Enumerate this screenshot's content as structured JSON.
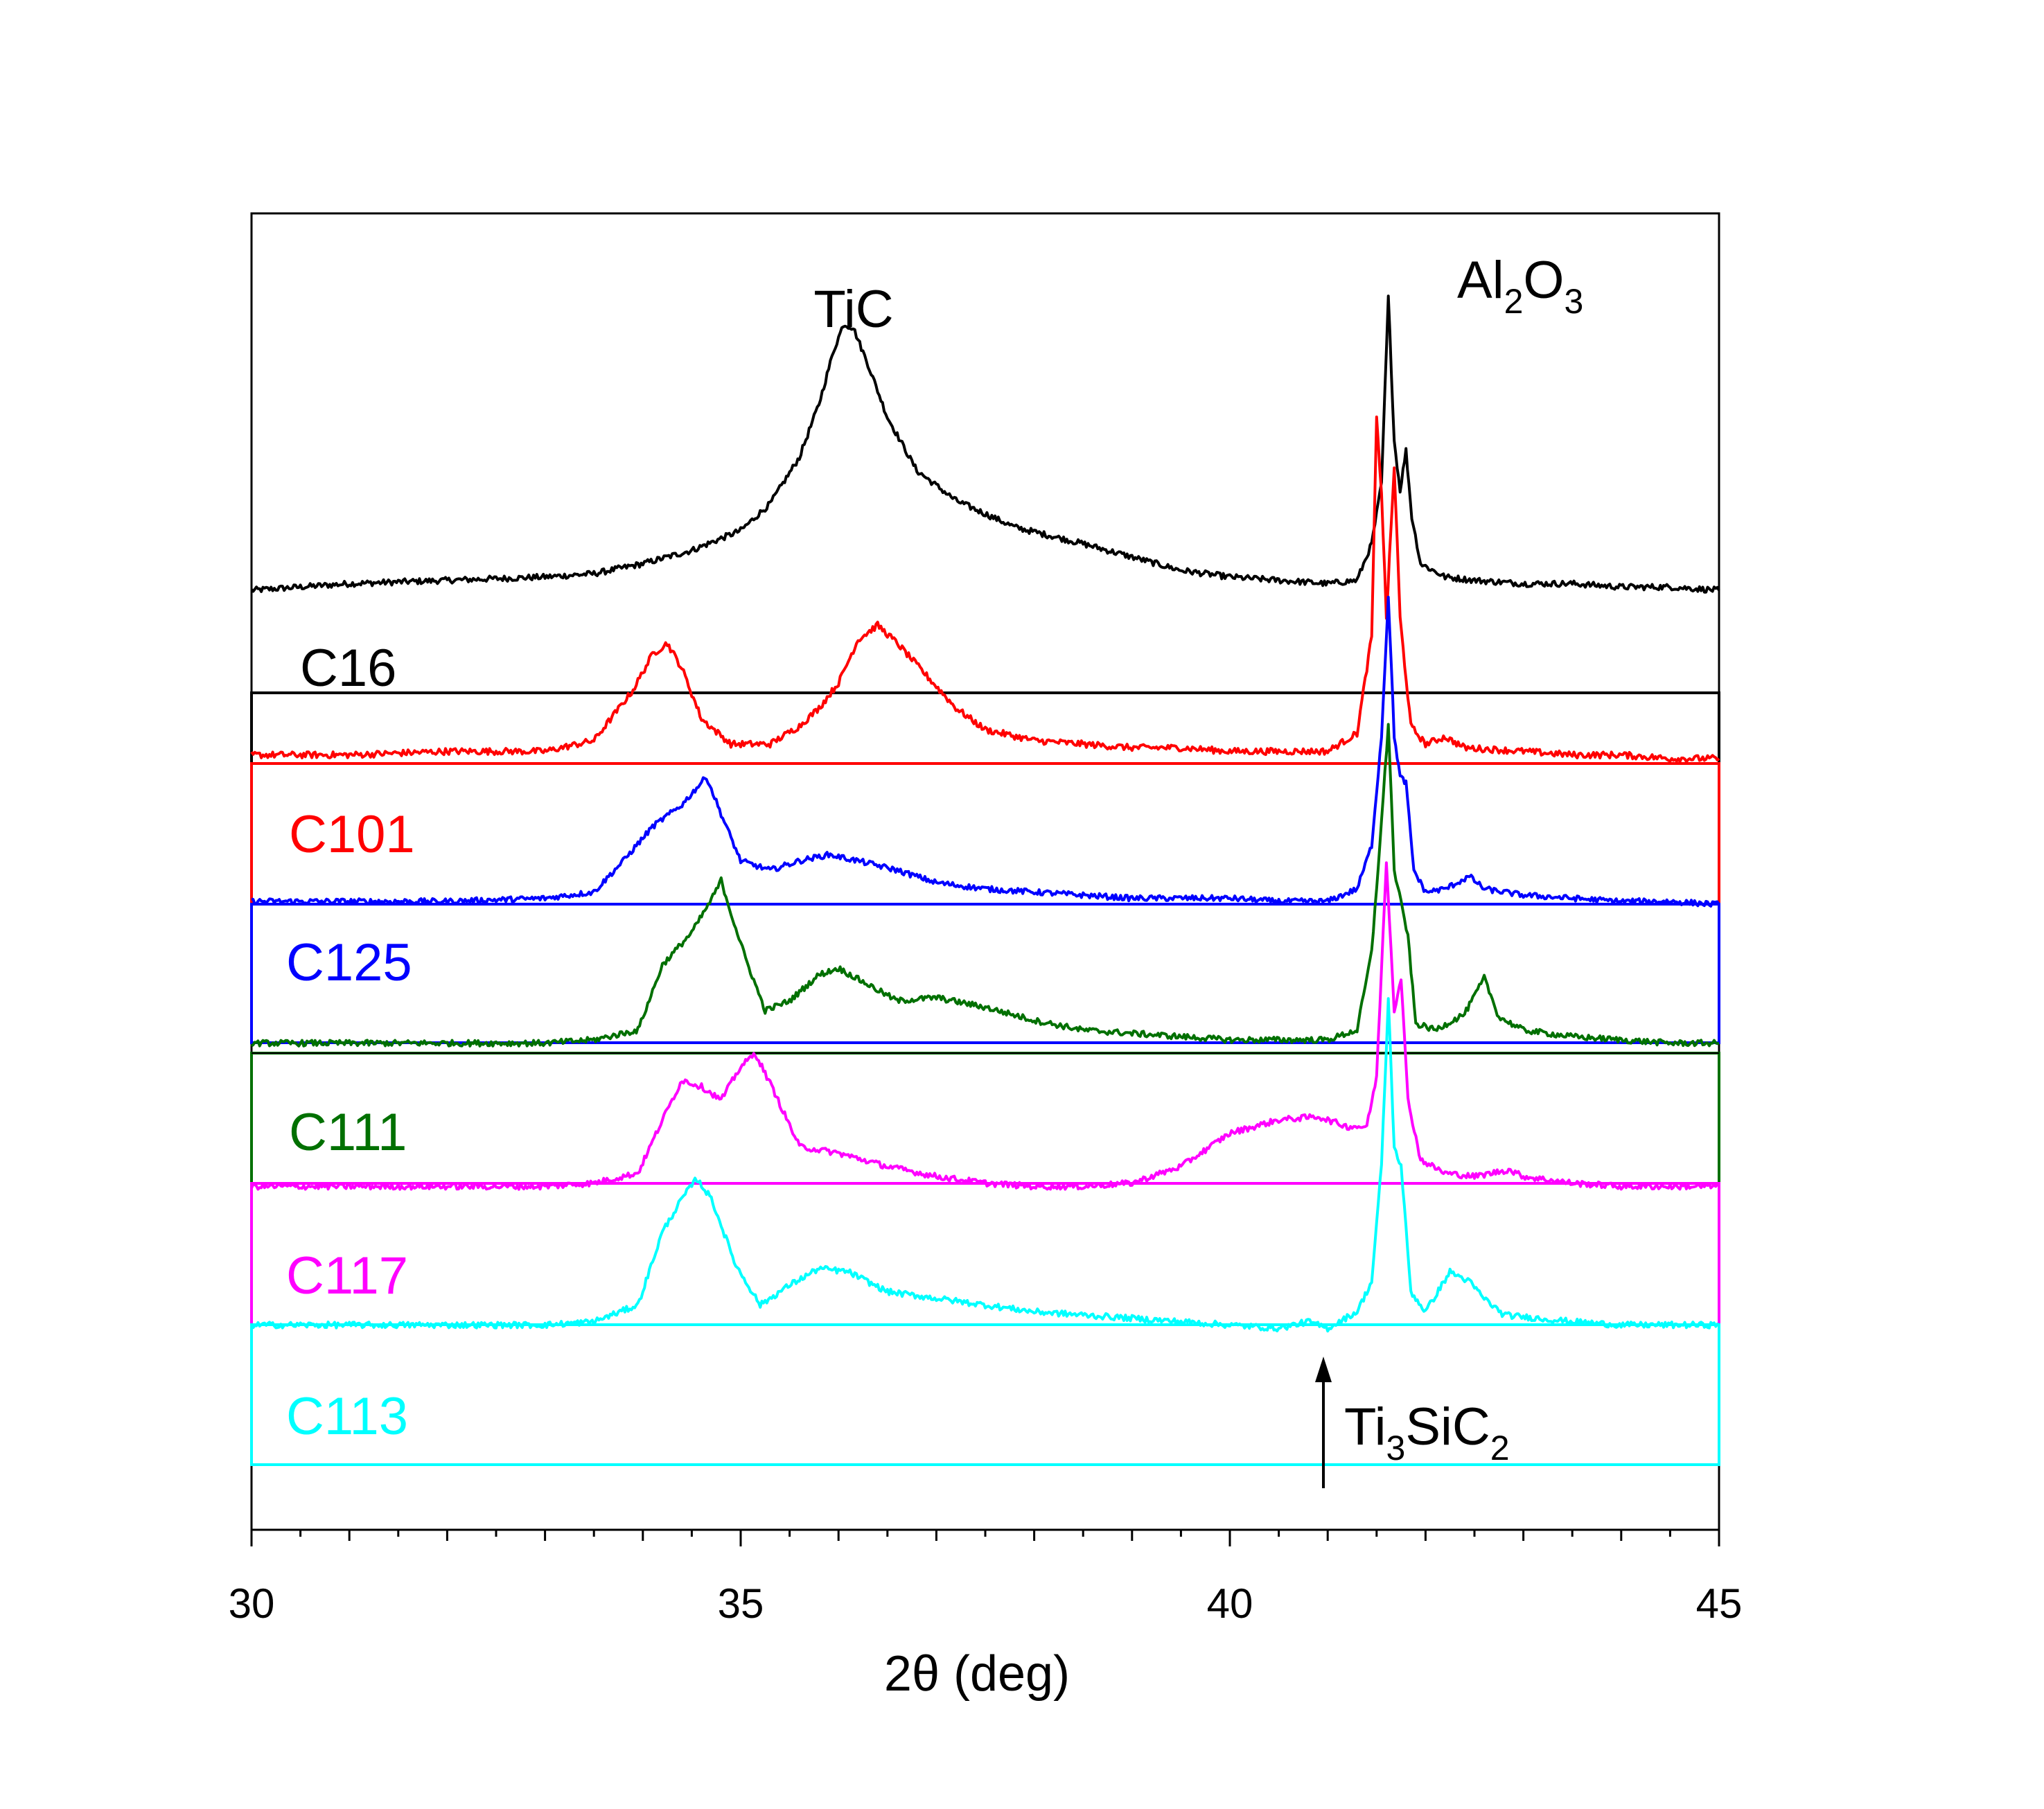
{
  "chart_data": {
    "type": "line",
    "title": "",
    "xlabel": "2θ (deg)",
    "ylabel": "",
    "xlim": [
      30,
      45
    ],
    "xticks": [
      30,
      35,
      40,
      45
    ],
    "xticklabels": [
      "30",
      "35",
      "40",
      "45"
    ],
    "grid": false,
    "layout": "stacked offset traces; each sample label sits inside a rectangular box outlined in the series colour",
    "annotations": [
      {
        "id": "tic",
        "text": "TiC",
        "x": 36.1
      },
      {
        "id": "al2o3",
        "parts": [
          "Al",
          "2",
          "O",
          "3"
        ],
        "x": 43.0
      },
      {
        "id": "ti3sic2",
        "parts": [
          "Ti",
          "3",
          "SiC",
          "2"
        ],
        "x": 40.95,
        "arrow": true
      }
    ],
    "series": [
      {
        "name": "C16",
        "color": "#000000",
        "baseline": 0.0,
        "points": [
          [
            30,
            0.1
          ],
          [
            31,
            0.12
          ],
          [
            32,
            0.13
          ],
          [
            33,
            0.14
          ],
          [
            33.5,
            0.15
          ],
          [
            34,
            0.18
          ],
          [
            34.5,
            0.22
          ],
          [
            35,
            0.28
          ],
          [
            35.3,
            0.36
          ],
          [
            35.6,
            0.5
          ],
          [
            35.8,
            0.66
          ],
          [
            35.95,
            0.82
          ],
          [
            36.05,
            0.9
          ],
          [
            36.15,
            0.89
          ],
          [
            36.3,
            0.78
          ],
          [
            36.5,
            0.62
          ],
          [
            36.8,
            0.46
          ],
          [
            37.2,
            0.37
          ],
          [
            37.8,
            0.29
          ],
          [
            38.5,
            0.24
          ],
          [
            39,
            0.2
          ],
          [
            39.5,
            0.16
          ],
          [
            40,
            0.14
          ],
          [
            40.5,
            0.13
          ],
          [
            41,
            0.12
          ],
          [
            41.3,
            0.13
          ],
          [
            41.45,
            0.24
          ],
          [
            41.55,
            0.42
          ],
          [
            41.62,
            0.98
          ],
          [
            41.68,
            0.55
          ],
          [
            41.74,
            0.4
          ],
          [
            41.8,
            0.52
          ],
          [
            41.86,
            0.32
          ],
          [
            41.95,
            0.18
          ],
          [
            42.2,
            0.14
          ],
          [
            42.5,
            0.13
          ],
          [
            43,
            0.12
          ],
          [
            43.5,
            0.12
          ],
          [
            44,
            0.11
          ],
          [
            44.5,
            0.11
          ],
          [
            45,
            0.1
          ]
        ]
      },
      {
        "name": "C101",
        "color": "#ff0000",
        "baseline": 0.0,
        "points": [
          [
            30,
            0.02
          ],
          [
            31,
            0.02
          ],
          [
            32,
            0.03
          ],
          [
            33,
            0.03
          ],
          [
            33.5,
            0.06
          ],
          [
            33.9,
            0.2
          ],
          [
            34.1,
            0.3
          ],
          [
            34.25,
            0.33
          ],
          [
            34.4,
            0.26
          ],
          [
            34.6,
            0.12
          ],
          [
            34.9,
            0.05
          ],
          [
            35.3,
            0.05
          ],
          [
            35.6,
            0.1
          ],
          [
            35.8,
            0.15
          ],
          [
            36.0,
            0.22
          ],
          [
            36.2,
            0.34
          ],
          [
            36.4,
            0.38
          ],
          [
            36.6,
            0.33
          ],
          [
            36.9,
            0.24
          ],
          [
            37.2,
            0.15
          ],
          [
            37.5,
            0.09
          ],
          [
            38,
            0.06
          ],
          [
            38.5,
            0.05
          ],
          [
            39,
            0.04
          ],
          [
            39.5,
            0.04
          ],
          [
            40,
            0.03
          ],
          [
            40.5,
            0.03
          ],
          [
            41,
            0.03
          ],
          [
            41.3,
            0.08
          ],
          [
            41.45,
            0.35
          ],
          [
            41.5,
            0.95
          ],
          [
            41.55,
            0.75
          ],
          [
            41.6,
            0.4
          ],
          [
            41.68,
            0.82
          ],
          [
            41.74,
            0.4
          ],
          [
            41.85,
            0.1
          ],
          [
            42,
            0.05
          ],
          [
            42.2,
            0.07
          ],
          [
            42.4,
            0.04
          ],
          [
            43,
            0.03
          ],
          [
            43.5,
            0.02
          ],
          [
            44,
            0.02
          ],
          [
            44.5,
            0.01
          ],
          [
            45,
            0.01
          ]
        ]
      },
      {
        "name": "C125",
        "color": "#0000ff",
        "baseline": 0.0,
        "points": [
          [
            30,
            0.02
          ],
          [
            31,
            0.02
          ],
          [
            32,
            0.02
          ],
          [
            33,
            0.03
          ],
          [
            33.5,
            0.05
          ],
          [
            33.8,
            0.15
          ],
          [
            34.1,
            0.26
          ],
          [
            34.4,
            0.33
          ],
          [
            34.65,
            0.42
          ],
          [
            34.8,
            0.3
          ],
          [
            35.0,
            0.15
          ],
          [
            35.3,
            0.12
          ],
          [
            35.6,
            0.15
          ],
          [
            35.9,
            0.17
          ],
          [
            36.2,
            0.15
          ],
          [
            36.6,
            0.12
          ],
          [
            37,
            0.08
          ],
          [
            37.5,
            0.06
          ],
          [
            38,
            0.05
          ],
          [
            38.5,
            0.04
          ],
          [
            39,
            0.03
          ],
          [
            39.5,
            0.03
          ],
          [
            40,
            0.03
          ],
          [
            40.5,
            0.02
          ],
          [
            41,
            0.02
          ],
          [
            41.3,
            0.06
          ],
          [
            41.45,
            0.2
          ],
          [
            41.55,
            0.55
          ],
          [
            41.62,
            1.0
          ],
          [
            41.68,
            0.55
          ],
          [
            41.74,
            0.42
          ],
          [
            41.8,
            0.4
          ],
          [
            41.88,
            0.12
          ],
          [
            42,
            0.05
          ],
          [
            42.2,
            0.06
          ],
          [
            42.45,
            0.1
          ],
          [
            42.6,
            0.06
          ],
          [
            43,
            0.04
          ],
          [
            43.5,
            0.03
          ],
          [
            44,
            0.02
          ],
          [
            44.5,
            0.02
          ],
          [
            45,
            0.01
          ]
        ]
      },
      {
        "name": "C111",
        "color": "#007000",
        "baseline": 0.0,
        "points": [
          [
            30,
            0.02
          ],
          [
            31,
            0.02
          ],
          [
            32,
            0.02
          ],
          [
            33,
            0.02
          ],
          [
            33.5,
            0.03
          ],
          [
            33.95,
            0.06
          ],
          [
            34.2,
            0.26
          ],
          [
            34.5,
            0.36
          ],
          [
            34.7,
            0.46
          ],
          [
            34.8,
            0.52
          ],
          [
            34.9,
            0.42
          ],
          [
            35.05,
            0.28
          ],
          [
            35.25,
            0.12
          ],
          [
            35.5,
            0.15
          ],
          [
            35.8,
            0.23
          ],
          [
            36.0,
            0.25
          ],
          [
            36.3,
            0.2
          ],
          [
            36.6,
            0.15
          ],
          [
            37,
            0.16
          ],
          [
            37.5,
            0.13
          ],
          [
            38,
            0.09
          ],
          [
            38.5,
            0.06
          ],
          [
            39,
            0.05
          ],
          [
            39.5,
            0.04
          ],
          [
            40,
            0.03
          ],
          [
            40.5,
            0.03
          ],
          [
            41,
            0.03
          ],
          [
            41.3,
            0.06
          ],
          [
            41.45,
            0.3
          ],
          [
            41.55,
            0.7
          ],
          [
            41.62,
            1.0
          ],
          [
            41.68,
            0.55
          ],
          [
            41.75,
            0.45
          ],
          [
            41.82,
            0.35
          ],
          [
            41.9,
            0.08
          ],
          [
            42.1,
            0.06
          ],
          [
            42.4,
            0.11
          ],
          [
            42.6,
            0.22
          ],
          [
            42.75,
            0.1
          ],
          [
            43,
            0.06
          ],
          [
            43.5,
            0.04
          ],
          [
            44,
            0.03
          ],
          [
            44.5,
            0.02
          ],
          [
            45,
            0.02
          ]
        ]
      },
      {
        "name": "C117",
        "color": "#ff00ff",
        "baseline": 0.0,
        "points": [
          [
            30,
            0.02
          ],
          [
            31,
            0.02
          ],
          [
            32,
            0.02
          ],
          [
            33,
            0.02
          ],
          [
            33.5,
            0.03
          ],
          [
            33.95,
            0.06
          ],
          [
            34.2,
            0.22
          ],
          [
            34.4,
            0.34
          ],
          [
            34.6,
            0.32
          ],
          [
            34.8,
            0.28
          ],
          [
            35.0,
            0.38
          ],
          [
            35.15,
            0.42
          ],
          [
            35.35,
            0.3
          ],
          [
            35.6,
            0.14
          ],
          [
            36,
            0.12
          ],
          [
            36.5,
            0.08
          ],
          [
            37,
            0.05
          ],
          [
            37.5,
            0.03
          ],
          [
            38,
            0.02
          ],
          [
            38.5,
            0.02
          ],
          [
            39,
            0.03
          ],
          [
            39.5,
            0.08
          ],
          [
            40,
            0.18
          ],
          [
            40.5,
            0.22
          ],
          [
            40.9,
            0.23
          ],
          [
            41.2,
            0.2
          ],
          [
            41.4,
            0.2
          ],
          [
            41.5,
            0.35
          ],
          [
            41.6,
            1.0
          ],
          [
            41.68,
            0.55
          ],
          [
            41.75,
            0.65
          ],
          [
            41.82,
            0.28
          ],
          [
            41.95,
            0.1
          ],
          [
            42.2,
            0.06
          ],
          [
            42.5,
            0.05
          ],
          [
            42.85,
            0.07
          ],
          [
            43,
            0.05
          ],
          [
            43.5,
            0.03
          ],
          [
            44,
            0.02
          ],
          [
            44.5,
            0.02
          ],
          [
            45,
            0.02
          ]
        ]
      },
      {
        "name": "C113",
        "color": "#00ffff",
        "baseline": 0.0,
        "points": [
          [
            30,
            0.02
          ],
          [
            31,
            0.02
          ],
          [
            32,
            0.02
          ],
          [
            33,
            0.02
          ],
          [
            33.5,
            0.03
          ],
          [
            33.95,
            0.08
          ],
          [
            34.2,
            0.3
          ],
          [
            34.4,
            0.4
          ],
          [
            34.55,
            0.46
          ],
          [
            34.7,
            0.4
          ],
          [
            34.95,
            0.2
          ],
          [
            35.2,
            0.08
          ],
          [
            35.5,
            0.14
          ],
          [
            35.8,
            0.19
          ],
          [
            36.1,
            0.18
          ],
          [
            36.5,
            0.12
          ],
          [
            37,
            0.1
          ],
          [
            37.5,
            0.08
          ],
          [
            38,
            0.06
          ],
          [
            38.5,
            0.05
          ],
          [
            39,
            0.04
          ],
          [
            39.5,
            0.03
          ],
          [
            40,
            0.02
          ],
          [
            40.5,
            0.01
          ],
          [
            40.8,
            0.03
          ],
          [
            41.0,
            0.01
          ],
          [
            41.3,
            0.06
          ],
          [
            41.45,
            0.15
          ],
          [
            41.55,
            0.5
          ],
          [
            41.62,
            1.0
          ],
          [
            41.68,
            0.55
          ],
          [
            41.75,
            0.5
          ],
          [
            41.85,
            0.12
          ],
          [
            42.0,
            0.06
          ],
          [
            42.25,
            0.18
          ],
          [
            42.45,
            0.15
          ],
          [
            42.6,
            0.1
          ],
          [
            42.8,
            0.05
          ],
          [
            43.5,
            0.03
          ],
          [
            44,
            0.02
          ],
          [
            44.5,
            0.02
          ],
          [
            45,
            0.02
          ]
        ]
      }
    ]
  }
}
